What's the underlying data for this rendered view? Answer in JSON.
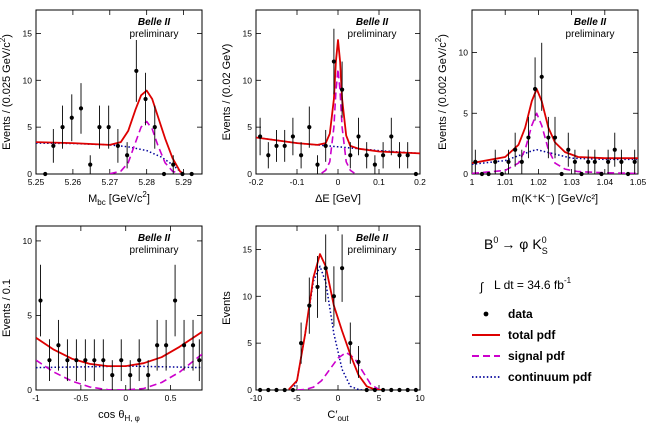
{
  "colors": {
    "data": "#000000",
    "total": "#dd0000",
    "signal": "#cc00cc",
    "continuum": "#000099"
  },
  "legend": {
    "process": "B⁰ → φ K⁰S",
    "process_lhs": "B",
    "process_lhs_sup": "0",
    "arrow": "→ φ",
    "process_k": "K",
    "process_k_sup": "0",
    "process_k_sub": "S",
    "lumi_integral": "∫",
    "lumi_text": "L dt = 34.6 fb",
    "lumi_sup": "-1",
    "entries": [
      {
        "label": "data",
        "style": "marker",
        "color_key": "data"
      },
      {
        "label": "total pdf",
        "style": "solid",
        "color_key": "total"
      },
      {
        "label": "signal pdf",
        "style": "dashed",
        "color_key": "signal"
      },
      {
        "label": "continuum pdf",
        "style": "dotted",
        "color_key": "continuum"
      }
    ]
  },
  "chart_data": [
    {
      "id": "mbc",
      "type": "scatter",
      "belle_label": "Belle II",
      "prelim_label": "preliminary",
      "xlabel": "M",
      "xlabel_sub": "bc",
      "xlabel_rest": " [GeV/c",
      "xlabel_sup": "2",
      "xlabel_end": "]",
      "ylabel": "Events / (0.025 GeV/c",
      "ylabel_sup": "2",
      "ylabel_end": ")",
      "xlim": [
        5.25,
        5.295
      ],
      "ylim": [
        0,
        17.5
      ],
      "xticks": [
        5.25,
        5.26,
        5.27,
        5.28,
        5.29
      ],
      "xtick_labels": [
        "5.25",
        "5.26",
        "5.27",
        "5.28",
        "5.29"
      ],
      "yticks": [
        0,
        5,
        10,
        15
      ],
      "ytick_labels": [
        "0",
        "5",
        "10",
        "15"
      ],
      "points": [
        {
          "x": 5.2525,
          "y": 0,
          "err": 0
        },
        {
          "x": 5.2547,
          "y": 3,
          "err": 1.8
        },
        {
          "x": 5.2572,
          "y": 5,
          "err": 2.3
        },
        {
          "x": 5.2597,
          "y": 6,
          "err": 2.5
        },
        {
          "x": 5.2622,
          "y": 7,
          "err": 2.7
        },
        {
          "x": 5.2647,
          "y": 1,
          "err": 1.0
        },
        {
          "x": 5.2672,
          "y": 5,
          "err": 2.3
        },
        {
          "x": 5.2697,
          "y": 5,
          "err": 2.3
        },
        {
          "x": 5.2722,
          "y": 3,
          "err": 1.8
        },
        {
          "x": 5.2747,
          "y": 2,
          "err": 1.4
        },
        {
          "x": 5.2772,
          "y": 11,
          "err": 3.3
        },
        {
          "x": 5.2797,
          "y": 8,
          "err": 2.8
        },
        {
          "x": 5.2822,
          "y": 5,
          "err": 2.3
        },
        {
          "x": 5.2847,
          "y": 0,
          "err": 0
        },
        {
          "x": 5.2872,
          "y": 1,
          "err": 1.0
        },
        {
          "x": 5.2897,
          "y": 0,
          "err": 0
        },
        {
          "x": 5.2922,
          "y": 0,
          "err": 0
        }
      ],
      "total_pdf": {
        "x": [
          5.25,
          5.26,
          5.265,
          5.27,
          5.273,
          5.275,
          5.277,
          5.2785,
          5.28,
          5.2815,
          5.283,
          5.285,
          5.287,
          5.289,
          5.29
        ],
        "y": [
          3.4,
          3.3,
          3.2,
          3.1,
          3.4,
          4.6,
          6.9,
          8.4,
          8.9,
          8.0,
          6.2,
          3.8,
          1.7,
          0.3,
          0
        ]
      },
      "signal_pdf": {
        "x": [
          5.27,
          5.273,
          5.275,
          5.277,
          5.2785,
          5.28,
          5.2815,
          5.283,
          5.285,
          5.287,
          5.289
        ],
        "y": [
          0.02,
          0.3,
          1.2,
          3.4,
          5.0,
          5.6,
          4.8,
          3.1,
          1.2,
          0.3,
          0.02
        ]
      },
      "continuum_pdf": {
        "x": [
          5.25,
          5.26,
          5.27,
          5.275,
          5.28,
          5.284,
          5.287,
          5.289,
          5.29
        ],
        "y": [
          3.3,
          3.25,
          3.1,
          2.9,
          2.5,
          1.8,
          1.0,
          0.3,
          0
        ]
      }
    },
    {
      "id": "de",
      "type": "scatter",
      "belle_label": "Belle II",
      "prelim_label": "preliminary",
      "xlabel": "ΔE [GeV]",
      "xlabel_sub": "",
      "xlabel_rest": "",
      "xlabel_sup": "",
      "xlabel_end": "",
      "ylabel": "Events / (0.02 GeV)",
      "ylabel_sup": "",
      "ylabel_end": "",
      "xlim": [
        -0.2,
        0.2
      ],
      "ylim": [
        0,
        17.5
      ],
      "xticks": [
        -0.2,
        -0.1,
        0,
        0.1,
        0.2
      ],
      "xtick_labels": [
        "-0.2",
        "-0.1",
        "0",
        "0.1",
        "0.2"
      ],
      "yticks": [
        0,
        5,
        10,
        15
      ],
      "ytick_labels": [
        "0",
        "5",
        "10",
        "15"
      ],
      "points": [
        {
          "x": -0.19,
          "y": 4,
          "err": 2.0
        },
        {
          "x": -0.17,
          "y": 2,
          "err": 1.4
        },
        {
          "x": -0.15,
          "y": 3,
          "err": 1.7
        },
        {
          "x": -0.13,
          "y": 3,
          "err": 1.7
        },
        {
          "x": -0.11,
          "y": 4,
          "err": 2.0
        },
        {
          "x": -0.09,
          "y": 2,
          "err": 1.4
        },
        {
          "x": -0.07,
          "y": 5,
          "err": 2.2
        },
        {
          "x": -0.05,
          "y": 1,
          "err": 1.0
        },
        {
          "x": -0.03,
          "y": 3,
          "err": 1.7
        },
        {
          "x": -0.01,
          "y": 12,
          "err": 3.5
        },
        {
          "x": 0.01,
          "y": 9,
          "err": 3.0
        },
        {
          "x": 0.03,
          "y": 2,
          "err": 1.4
        },
        {
          "x": 0.05,
          "y": 4,
          "err": 2.0
        },
        {
          "x": 0.07,
          "y": 2,
          "err": 1.4
        },
        {
          "x": 0.09,
          "y": 1,
          "err": 1.0
        },
        {
          "x": 0.11,
          "y": 2,
          "err": 1.4
        },
        {
          "x": 0.13,
          "y": 4,
          "err": 2.0
        },
        {
          "x": 0.15,
          "y": 2,
          "err": 1.4
        },
        {
          "x": 0.17,
          "y": 2,
          "err": 1.4
        },
        {
          "x": 0.19,
          "y": 0,
          "err": 0
        }
      ],
      "total_pdf": {
        "x": [
          -0.2,
          -0.1,
          -0.05,
          -0.03,
          -0.02,
          -0.01,
          -0.005,
          0,
          0.005,
          0.01,
          0.02,
          0.03,
          0.05,
          0.1,
          0.2
        ],
        "y": [
          3.9,
          3.3,
          3.1,
          3.3,
          4.3,
          8.0,
          12.0,
          14.3,
          12.0,
          8.0,
          4.1,
          3.0,
          2.7,
          2.4,
          2.2
        ]
      },
      "signal_pdf": {
        "x": [
          -0.04,
          -0.03,
          -0.02,
          -0.01,
          -0.005,
          0,
          0.005,
          0.01,
          0.02,
          0.03,
          0.04
        ],
        "y": [
          0.1,
          0.4,
          1.3,
          5.0,
          8.8,
          11.2,
          8.8,
          5.0,
          1.3,
          0.4,
          0.1
        ]
      },
      "continuum_pdf": {
        "x": [
          -0.2,
          -0.1,
          0,
          0.1,
          0.2
        ],
        "y": [
          3.9,
          3.3,
          2.9,
          2.5,
          2.2
        ]
      }
    },
    {
      "id": "mkk",
      "type": "scatter",
      "belle_label": "Belle II",
      "prelim_label": "preliminary",
      "xlabel": "m(K",
      "xlabel_sub": "",
      "xlabel_rest": "",
      "xlabel_sup": "",
      "xlabel_end": "",
      "xlabel_full": "m(K⁺K⁻) [GeV/c²]",
      "ylabel": "Events / (0.002 GeV/c",
      "ylabel_sup": "2",
      "ylabel_end": ")",
      "xlim": [
        1.0,
        1.05
      ],
      "ylim": [
        0,
        13.5
      ],
      "xticks": [
        1.0,
        1.01,
        1.02,
        1.03,
        1.04,
        1.05
      ],
      "xtick_labels": [
        "1",
        "1.01",
        "1.02",
        "1.03",
        "1.04",
        "1.05"
      ],
      "yticks": [
        0,
        5,
        10
      ],
      "ytick_labels": [
        "0",
        "5",
        "10"
      ],
      "points": [
        {
          "x": 1.001,
          "y": 1,
          "err": 1.0
        },
        {
          "x": 1.003,
          "y": 0,
          "err": 0
        },
        {
          "x": 1.005,
          "y": 0,
          "err": 0
        },
        {
          "x": 1.007,
          "y": 1,
          "err": 1.0
        },
        {
          "x": 1.009,
          "y": 0,
          "err": 0
        },
        {
          "x": 1.011,
          "y": 1,
          "err": 1.0
        },
        {
          "x": 1.013,
          "y": 2,
          "err": 1.4
        },
        {
          "x": 1.015,
          "y": 1,
          "err": 1.0
        },
        {
          "x": 1.017,
          "y": 3,
          "err": 1.7
        },
        {
          "x": 1.019,
          "y": 7,
          "err": 2.6
        },
        {
          "x": 1.021,
          "y": 8,
          "err": 2.8
        },
        {
          "x": 1.023,
          "y": 3,
          "err": 1.7
        },
        {
          "x": 1.025,
          "y": 3,
          "err": 1.7
        },
        {
          "x": 1.027,
          "y": 0,
          "err": 0
        },
        {
          "x": 1.029,
          "y": 2,
          "err": 1.4
        },
        {
          "x": 1.031,
          "y": 1,
          "err": 1.0
        },
        {
          "x": 1.033,
          "y": 0,
          "err": 0
        },
        {
          "x": 1.035,
          "y": 1,
          "err": 1.0
        },
        {
          "x": 1.037,
          "y": 1,
          "err": 1.0
        },
        {
          "x": 1.039,
          "y": 0,
          "err": 0
        },
        {
          "x": 1.041,
          "y": 1,
          "err": 1.0
        },
        {
          "x": 1.043,
          "y": 2,
          "err": 1.4
        },
        {
          "x": 1.045,
          "y": 1,
          "err": 1.0
        },
        {
          "x": 1.047,
          "y": 0,
          "err": 0
        },
        {
          "x": 1.049,
          "y": 1,
          "err": 1.0
        }
      ],
      "total_pdf": {
        "x": [
          1.0,
          1.01,
          1.014,
          1.016,
          1.018,
          1.0195,
          1.021,
          1.023,
          1.025,
          1.028,
          1.032,
          1.04,
          1.05
        ],
        "y": [
          0.9,
          1.4,
          2.4,
          3.8,
          6.0,
          7.0,
          6.0,
          3.8,
          2.6,
          1.8,
          1.4,
          1.3,
          1.3
        ]
      },
      "signal_pdf": {
        "x": [
          1.0,
          1.01,
          1.014,
          1.016,
          1.018,
          1.0195,
          1.021,
          1.023,
          1.025,
          1.028,
          1.032,
          1.04,
          1.05
        ],
        "y": [
          0.05,
          0.3,
          0.9,
          2.0,
          4.0,
          5.0,
          4.0,
          2.0,
          0.9,
          0.4,
          0.2,
          0.1,
          0.05
        ]
      },
      "continuum_pdf": {
        "x": [
          1.0,
          1.01,
          1.018,
          1.0195,
          1.021,
          1.03,
          1.04,
          1.05
        ],
        "y": [
          0.8,
          1.1,
          1.9,
          2.0,
          1.9,
          1.3,
          1.2,
          1.2
        ]
      }
    },
    {
      "id": "cos",
      "type": "scatter",
      "belle_label": "Belle II",
      "prelim_label": "preliminary",
      "xlabel": "cos θ",
      "xlabel_sub": "H, φ",
      "xlabel_rest": "",
      "xlabel_sup": "",
      "xlabel_end": "",
      "ylabel": "Events / 0.1",
      "ylabel_sup": "",
      "ylabel_end": "",
      "xlim": [
        -1.0,
        0.85
      ],
      "ylim": [
        0,
        11
      ],
      "xticks": [
        -1.0,
        -0.5,
        0,
        0.5
      ],
      "xtick_labels": [
        "-1",
        "-0.5",
        "0",
        "0.5"
      ],
      "yticks": [
        0,
        5,
        10
      ],
      "ytick_labels": [
        "0",
        "5",
        "10"
      ],
      "points": [
        {
          "x": -0.95,
          "y": 6,
          "err": 2.4
        },
        {
          "x": -0.85,
          "y": 2,
          "err": 1.4
        },
        {
          "x": -0.75,
          "y": 3,
          "err": 1.7
        },
        {
          "x": -0.65,
          "y": 2,
          "err": 1.4
        },
        {
          "x": -0.55,
          "y": 2,
          "err": 1.4
        },
        {
          "x": -0.45,
          "y": 2,
          "err": 1.4
        },
        {
          "x": -0.35,
          "y": 2,
          "err": 1.4
        },
        {
          "x": -0.25,
          "y": 2,
          "err": 1.4
        },
        {
          "x": -0.15,
          "y": 1,
          "err": 1.0
        },
        {
          "x": -0.05,
          "y": 2,
          "err": 1.4
        },
        {
          "x": 0.05,
          "y": 1,
          "err": 1.0
        },
        {
          "x": 0.15,
          "y": 2,
          "err": 1.4
        },
        {
          "x": 0.25,
          "y": 1,
          "err": 1.0
        },
        {
          "x": 0.35,
          "y": 3,
          "err": 1.7
        },
        {
          "x": 0.45,
          "y": 3,
          "err": 1.7
        },
        {
          "x": 0.55,
          "y": 6,
          "err": 2.4
        },
        {
          "x": 0.65,
          "y": 3,
          "err": 1.7
        },
        {
          "x": 0.75,
          "y": 3,
          "err": 1.7
        },
        {
          "x": 0.82,
          "y": 2,
          "err": 1.4
        }
      ],
      "total_pdf": {
        "x": [
          -1.0,
          -0.8,
          -0.6,
          -0.4,
          -0.2,
          0,
          0.2,
          0.4,
          0.6,
          0.85
        ],
        "y": [
          3.5,
          2.7,
          2.1,
          1.75,
          1.6,
          1.6,
          1.8,
          2.2,
          2.9,
          3.9
        ]
      },
      "signal_pdf": {
        "x": [
          -1.0,
          -0.8,
          -0.6,
          -0.4,
          -0.2,
          0,
          0.2,
          0.4,
          0.6,
          0.85
        ],
        "y": [
          2.0,
          1.2,
          0.6,
          0.2,
          0.02,
          0.0,
          0.1,
          0.5,
          1.2,
          2.4
        ]
      },
      "continuum_pdf": {
        "x": [
          -1.0,
          -0.5,
          0,
          0.5,
          0.85
        ],
        "y": [
          1.5,
          1.55,
          1.6,
          1.55,
          1.5
        ]
      }
    },
    {
      "id": "cout",
      "type": "scatter",
      "belle_label": "Belle II",
      "prelim_label": "preliminary",
      "xlabel": "C′",
      "xlabel_sub": "out",
      "xlabel_rest": "",
      "xlabel_sup": "",
      "xlabel_end": "",
      "ylabel": "Events",
      "ylabel_sup": "",
      "ylabel_end": "",
      "xlim": [
        -10,
        10
      ],
      "ylim": [
        0,
        17.5
      ],
      "xticks": [
        -10,
        -5,
        0,
        5,
        10
      ],
      "xtick_labels": [
        "-10",
        "-5",
        "0",
        "5",
        "10"
      ],
      "yticks": [
        0,
        5,
        10,
        15
      ],
      "ytick_labels": [
        "0",
        "5",
        "10",
        "15"
      ],
      "points": [
        {
          "x": -9.5,
          "y": 0,
          "err": 0
        },
        {
          "x": -8.5,
          "y": 0,
          "err": 0
        },
        {
          "x": -7.5,
          "y": 0,
          "err": 0
        },
        {
          "x": -6.5,
          "y": 0,
          "err": 0
        },
        {
          "x": -5.5,
          "y": 0,
          "err": 0
        },
        {
          "x": -4.5,
          "y": 5,
          "err": 2.2
        },
        {
          "x": -3.5,
          "y": 9,
          "err": 3.0
        },
        {
          "x": -2.5,
          "y": 11,
          "err": 3.3
        },
        {
          "x": -1.5,
          "y": 13,
          "err": 3.6
        },
        {
          "x": -0.5,
          "y": 10,
          "err": 3.2
        },
        {
          "x": 0.5,
          "y": 13,
          "err": 3.6
        },
        {
          "x": 1.5,
          "y": 5,
          "err": 2.2
        },
        {
          "x": 2.5,
          "y": 3,
          "err": 1.7
        },
        {
          "x": 3.5,
          "y": 0,
          "err": 0
        },
        {
          "x": 4.5,
          "y": 0,
          "err": 0
        },
        {
          "x": 5.5,
          "y": 0,
          "err": 0
        },
        {
          "x": 6.5,
          "y": 0,
          "err": 0
        },
        {
          "x": 7.5,
          "y": 0,
          "err": 0
        },
        {
          "x": 8.5,
          "y": 0,
          "err": 0
        },
        {
          "x": 9.5,
          "y": 0,
          "err": 0
        }
      ],
      "total_pdf": {
        "x": [
          -6,
          -5,
          -4,
          -3,
          -2.2,
          -1.5,
          -0.5,
          0.5,
          1.5,
          2.5,
          3.5,
          4.5,
          5.5
        ],
        "y": [
          0.05,
          1.0,
          6.0,
          12.0,
          14.5,
          13.2,
          9.0,
          6.3,
          3.8,
          1.6,
          0.4,
          0.05,
          0
        ]
      },
      "signal_pdf": {
        "x": [
          -5,
          -4,
          -3,
          -2,
          -1,
          0,
          1,
          2,
          3,
          4,
          5
        ],
        "y": [
          0.0,
          0.05,
          0.3,
          1.0,
          2.2,
          3.4,
          4.0,
          3.4,
          2.0,
          0.6,
          0.05
        ]
      },
      "continuum_pdf": {
        "x": [
          -5.5,
          -5,
          -4,
          -3,
          -2.2,
          -1.5,
          -0.5,
          0.5,
          1.5,
          2.5,
          3
        ],
        "y": [
          0.0,
          1.0,
          6.0,
          11.6,
          13.2,
          11.5,
          6.0,
          2.2,
          0.4,
          0.05,
          0
        ]
      }
    }
  ]
}
